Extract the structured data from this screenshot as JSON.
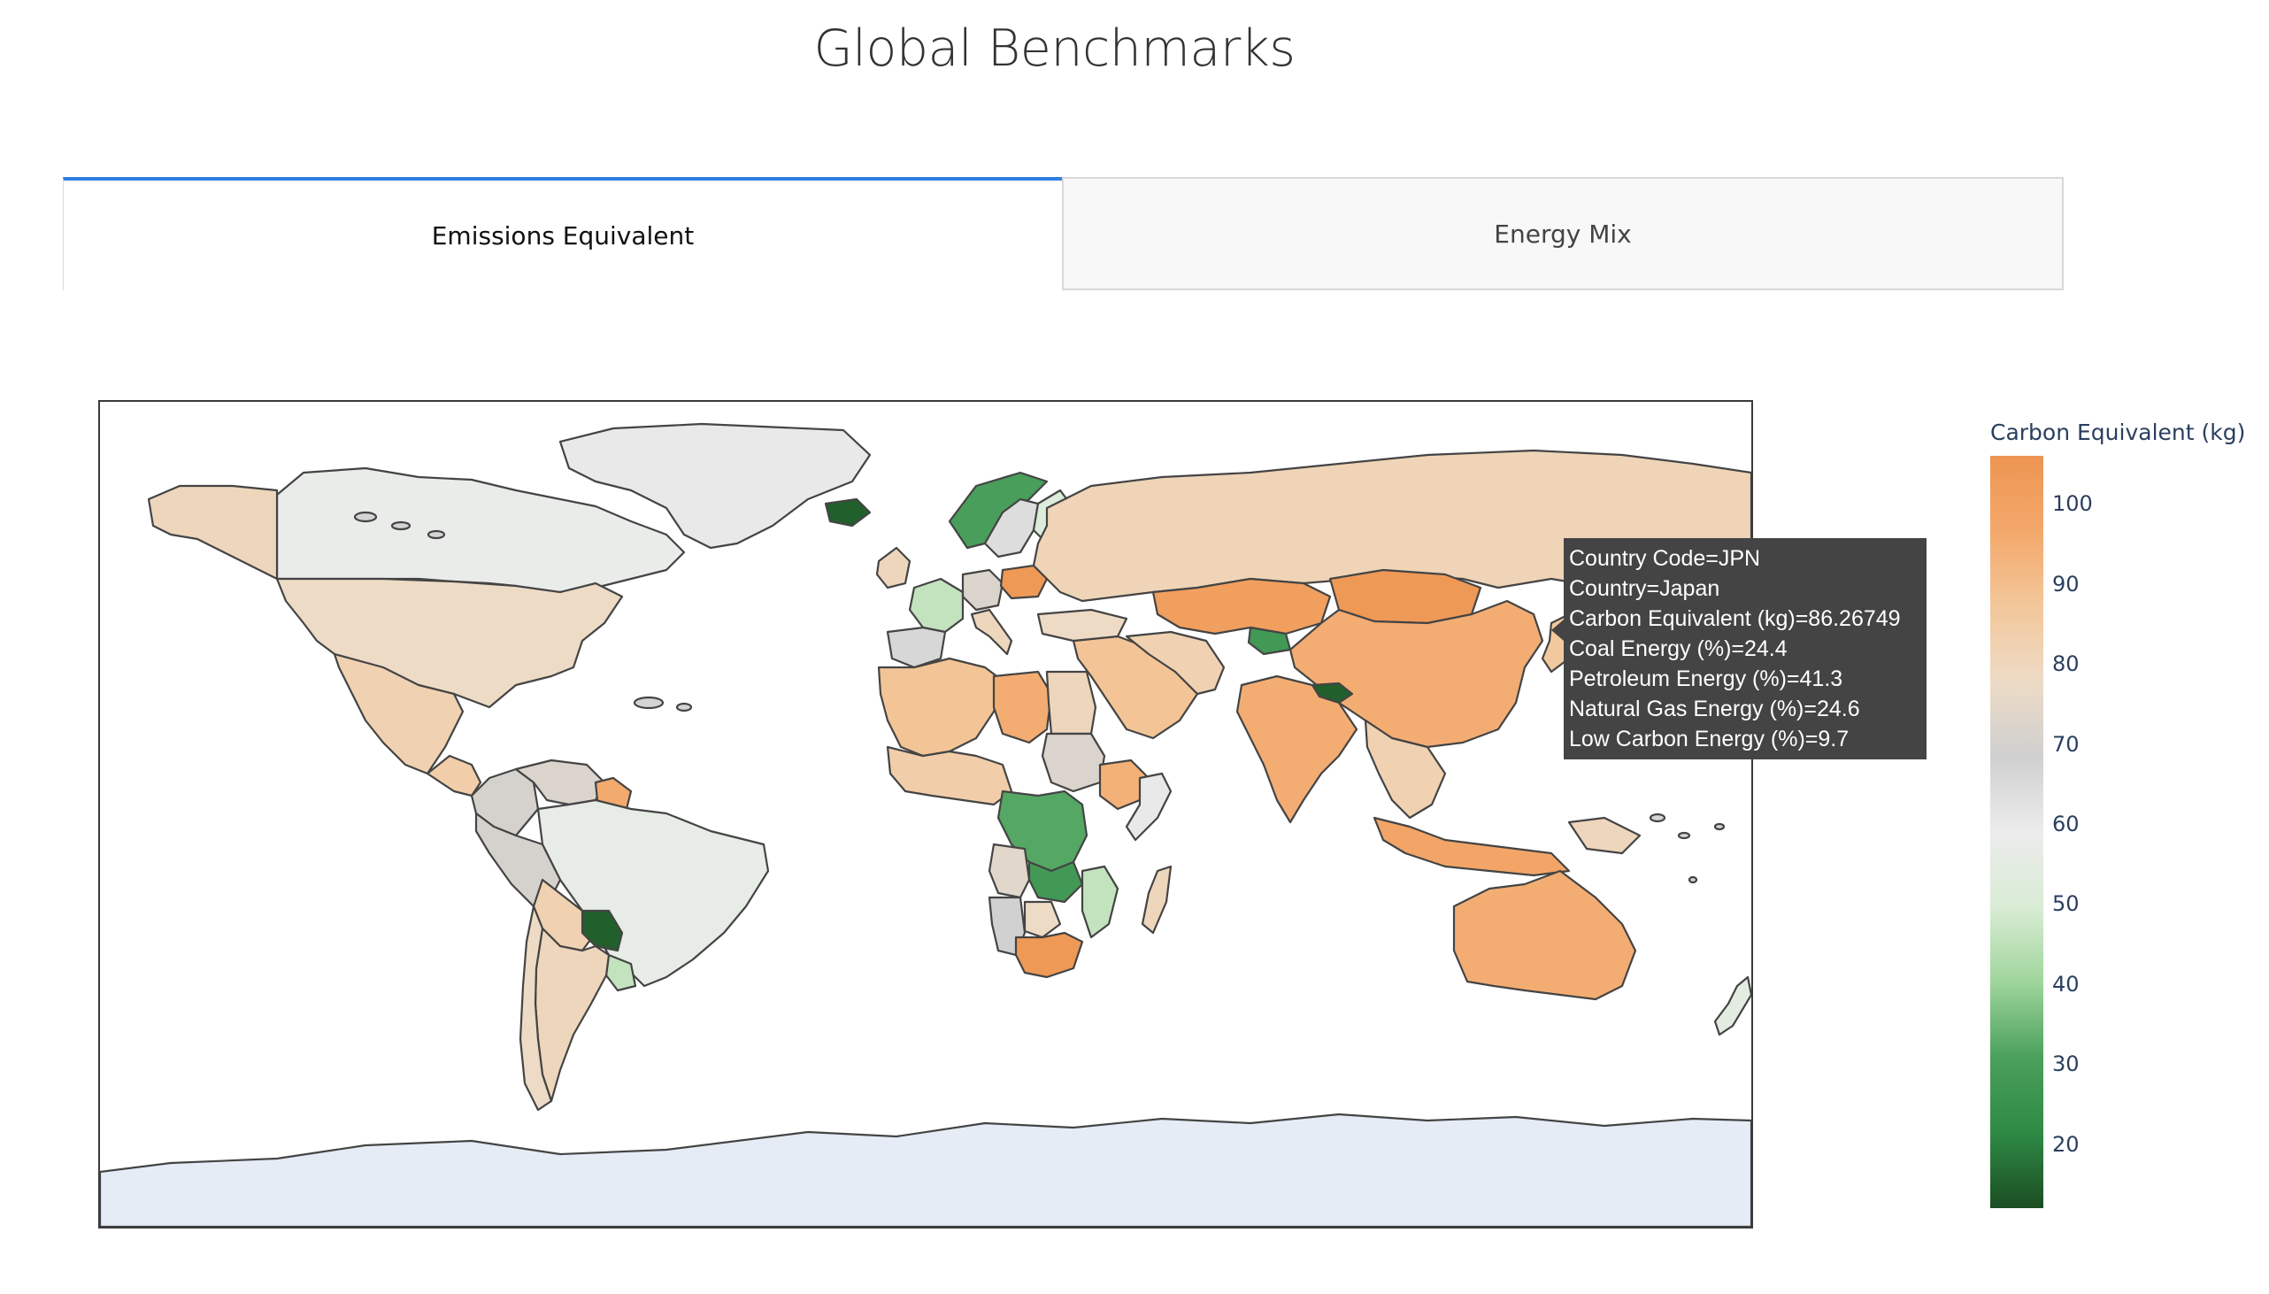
{
  "page": {
    "title": "Global Benchmarks"
  },
  "tabs": [
    {
      "label": "Emissions Equivalent",
      "selected": true
    },
    {
      "label": "Energy Mix",
      "selected": false
    }
  ],
  "colors": {
    "accent": "#2f7fe0",
    "ocean": "#ffffff",
    "antarctica": "#e5ecf6",
    "no_data": "#d4d4d4",
    "tooltip_bg": "#444444",
    "scale": [
      "#1b4d22",
      "#2e8a45",
      "#4aa05c",
      "#9fd59b",
      "#d9ecd5",
      "#ececec",
      "#d0d0d0",
      "#eddbc6",
      "#f3c79a",
      "#f3a86b",
      "#ee9552"
    ]
  },
  "map": {
    "type": "choropleth",
    "projection": "equirectangular",
    "value_name": "Carbon Equivalent (kg)",
    "color_range": [
      12,
      106
    ],
    "regions": [
      {
        "name": "Canada",
        "value": 58
      },
      {
        "name": "Greenland",
        "value": 60
      },
      {
        "name": "United States",
        "value": 78
      },
      {
        "name": "Alaska",
        "value": 80
      },
      {
        "name": "Mexico",
        "value": 82
      },
      {
        "name": "Central America",
        "value": 84
      },
      {
        "name": "Colombia",
        "value": 70
      },
      {
        "name": "Venezuela",
        "value": 72
      },
      {
        "name": "Guyana",
        "value": 96
      },
      {
        "name": "Brazil",
        "value": 57
      },
      {
        "name": "Peru",
        "value": 70
      },
      {
        "name": "Bolivia",
        "value": 82
      },
      {
        "name": "Paraguay",
        "value": 15
      },
      {
        "name": "Uruguay",
        "value": 46
      },
      {
        "name": "Argentina",
        "value": 80
      },
      {
        "name": "Chile",
        "value": 78
      },
      {
        "name": "Iceland",
        "value": 15
      },
      {
        "name": "Norway",
        "value": 30
      },
      {
        "name": "Sweden",
        "value": 64
      },
      {
        "name": "Finland",
        "value": 52
      },
      {
        "name": "United Kingdom",
        "value": 80
      },
      {
        "name": "France",
        "value": 46
      },
      {
        "name": "Spain",
        "value": 66
      },
      {
        "name": "Germany",
        "value": 72
      },
      {
        "name": "Poland",
        "value": 104
      },
      {
        "name": "Italy",
        "value": 80
      },
      {
        "name": "Russia",
        "value": 81
      },
      {
        "name": "Kazakhstan",
        "value": 101
      },
      {
        "name": "Mongolia",
        "value": 104
      },
      {
        "name": "China",
        "value": 95
      },
      {
        "name": "India",
        "value": 95
      },
      {
        "name": "Nepal",
        "value": 15
      },
      {
        "name": "Kyrgyzstan",
        "value": 28
      },
      {
        "name": "Middle East",
        "value": 88
      },
      {
        "name": "Iran",
        "value": 82
      },
      {
        "name": "Turkey",
        "value": 78
      },
      {
        "name": "North Africa",
        "value": 88
      },
      {
        "name": "Libya",
        "value": 95
      },
      {
        "name": "Egypt",
        "value": 80
      },
      {
        "name": "Sudan",
        "value": 72
      },
      {
        "name": "West Africa",
        "value": 84
      },
      {
        "name": "Ethiopia",
        "value": 94
      },
      {
        "name": "Somalia",
        "value": 60
      },
      {
        "name": "DR Congo",
        "value": 32
      },
      {
        "name": "Angola",
        "value": 74
      },
      {
        "name": "Zambia",
        "value": 28
      },
      {
        "name": "Mozambique",
        "value": 46
      },
      {
        "name": "Namibia",
        "value": 68
      },
      {
        "name": "Botswana",
        "value": 78
      },
      {
        "name": "South Africa",
        "value": 104
      },
      {
        "name": "Madagascar",
        "value": 80
      },
      {
        "name": "Southeast Asia",
        "value": 82
      },
      {
        "name": "Indonesia",
        "value": 98
      },
      {
        "name": "Papua New Guinea",
        "value": 80
      },
      {
        "name": "Japan",
        "value": 86.26749
      },
      {
        "name": "Australia",
        "value": 95
      },
      {
        "name": "New Zealand",
        "value": 55
      },
      {
        "name": "Antarctica",
        "value": null
      }
    ]
  },
  "tooltip": {
    "lines": [
      "Country Code=JPN",
      "Country=Japan",
      "Carbon Equivalent (kg)=86.26749",
      "Coal Energy (%)=24.4",
      "Petroleum Energy (%)=41.3",
      "Natural Gas Energy (%)=24.6",
      "Low Carbon Energy (%)=9.7"
    ]
  },
  "colorbar": {
    "title": "Carbon Equivalent (kg)",
    "ticks": [
      "100",
      "90",
      "80",
      "70",
      "60",
      "50",
      "40",
      "30",
      "20"
    ],
    "tick_values": [
      100,
      90,
      80,
      70,
      60,
      50,
      40,
      30,
      20
    ],
    "range": [
      12,
      106
    ]
  }
}
